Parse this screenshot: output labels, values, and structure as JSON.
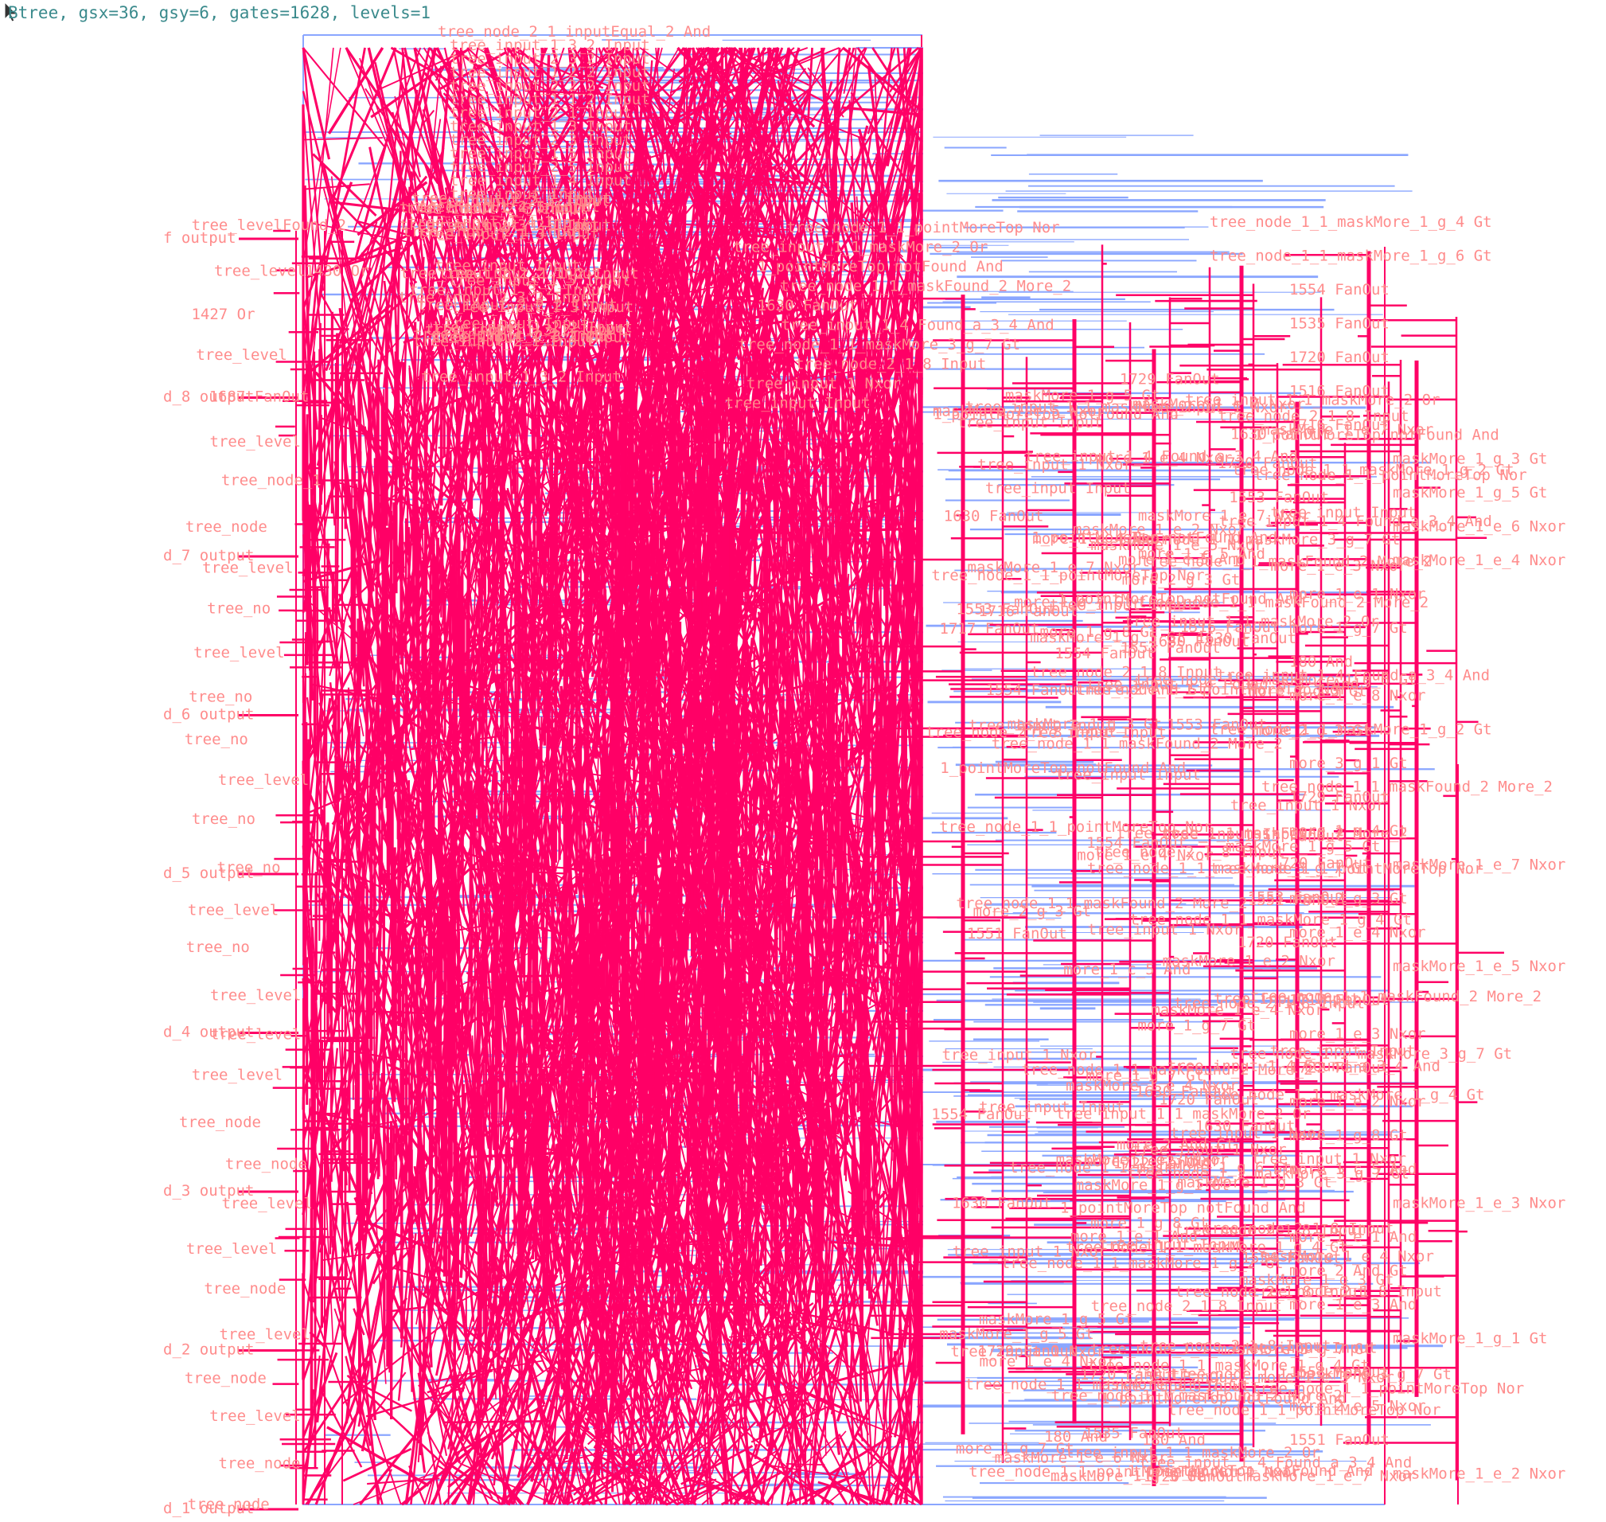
{
  "status_line": "Btree, gsx=36, gsy=6, gates=1628, levels=1",
  "colors": {
    "wire": "#ff0066",
    "bus": "#8aa6ff",
    "label": "#ff8c8c",
    "status": "#3a8a8c",
    "background": "#ffffff"
  },
  "left_outputs": [
    "f output",
    "d_8 output",
    "d_7 output",
    "d_6 output",
    "d_5 output",
    "d_4 output",
    "d_3 output",
    "d_2 output",
    "d_1 output"
  ],
  "left_labels": [
    "tree_levelFound_2",
    "tree_level1430 Or",
    "1427 Or",
    "tree_level",
    "1687 FanOut",
    "tree_level",
    "tree_node_1",
    "tree_node",
    "tree_level",
    "tree_no",
    "tree_level",
    "tree_no",
    "tree_no",
    "tree_level",
    "tree_no",
    "tree_no",
    "tree_level",
    "tree_no",
    "tree_level",
    "tree_level",
    "tree_level",
    "tree_node",
    "tree_node",
    "tree_level",
    "tree_level",
    "tree_node",
    "tree_level",
    "tree_node",
    "tree_level",
    "tree_node",
    "tree_node"
  ],
  "top_labels": [
    "tree_node_2_1_inputEqual_2 And",
    "tree_input_1_3_2 Input",
    "tree_input_2_3_2 Input",
    "tree_input_1_2_2 Input",
    "tree_input_2_2_2 Input",
    "tree_input_1_1_2 Input",
    "tree_input_2_1 Input",
    "tree_input_1_3 Input",
    "tree_input_2_3 Input",
    "tree_input_1_5 Input",
    "tree_input_2_5 Input",
    "tree_input_1_4 Input",
    "tree_input Input"
  ],
  "mid_labels": [
    "tree_node_1_1_pointMoreTop Nor",
    "tree_input_1_1_maskMore_2 Or",
    "1_pointMoreTop notFound And",
    "tree_node_1_1_maskFound_2 More_2",
    "1630 FanOut",
    "tree_input_1_4 Found_a_3_4 And",
    "tree_node_1_1_maskMore_3_g_7 Gt",
    "tree_node_2_1_8 Input",
    "tree_input 1 Nxor",
    "tree_input Input"
  ],
  "right_labels": [
    "tree_node_1_1_maskMore_1_g_4 Gt",
    "tree_node_1_1_maskMore_1_g_6 Gt",
    "1554 FanOut",
    "1535 FanOut",
    "1720 FanOut",
    "1516 FanOut",
    "1716 FanOut",
    "maskMore_1_g_3 Gt",
    "maskMore_1_g_5 Gt",
    "maskMore_1_e_6 Nxor",
    "maskMore_1_e_4 Nxor",
    "more_1_e_1 Nxor",
    "more_1_g_7 Gt",
    "180 And",
    "more_1_e_8 Nxor",
    "tree_node_1_1_maskMore_1_g_2 Gt",
    "more_3_g_1 Gt",
    "1729 FanOut",
    "more_1_g_4 Gt",
    "maskMore_1_e_7 Nxor",
    "more_2_g_3 Gt",
    "more_1_e_4 Nxor",
    "maskMore_1_e_5 Nxor",
    "1717 FanOut",
    "more_1_e_3 Nxor",
    "1722 FanOut",
    "more_1_e_2 Nxor",
    "more_1_g_8 Gt",
    "more_1_c_5 And",
    "maskMore_1_e_3 Nxor",
    "more_1_e_1 And",
    "more_2 And Gt",
    "more_1_e_3 And",
    "maskMore_1_g_1 Gt",
    "1553 FanOut",
    "more_2_e_5 Nxor",
    "1551 FanOut",
    "maskMore_1_e_2 Nxor"
  ]
}
